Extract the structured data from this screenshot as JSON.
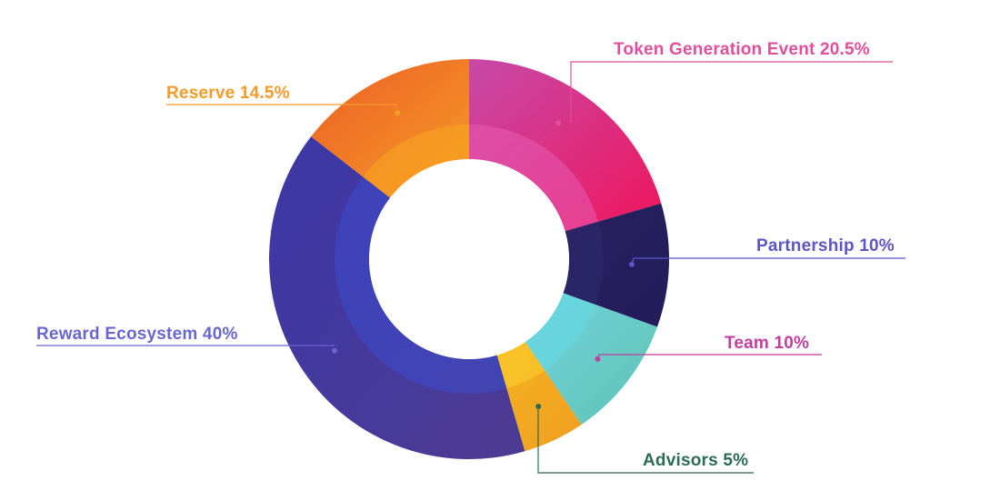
{
  "chart_data": {
    "type": "pie",
    "variant": "donut",
    "slices": [
      {
        "label": "Token Generation Event",
        "display_label": "Token Generation Event  20.5%",
        "value": 20.5,
        "color_start": "#c64aa8",
        "color_end": "#f0155c",
        "inner_color": "#e85bb3",
        "label_color": "#e04f9c",
        "label_side": "right"
      },
      {
        "label": "Partnership",
        "display_label": "Partnership 10%",
        "value": 10,
        "color_start": "#27215f",
        "color_end": "#221d5a",
        "inner_color": "#2f2a6e",
        "label_color": "#5d55c4",
        "label_side": "right"
      },
      {
        "label": "Team",
        "display_label": "Team  10%",
        "value": 10,
        "color_start": "#76d3dd",
        "color_end": "#5cc3b3",
        "inner_color": "#62dbe6",
        "label_color": "#c23f9c",
        "label_side": "right"
      },
      {
        "label": "Advisors",
        "display_label": "Advisors 5%",
        "value": 5,
        "color_start": "#f6b31e",
        "color_end": "#ee9e22",
        "inner_color": "#fbd130",
        "label_color": "#2c6b55",
        "label_side": "right"
      },
      {
        "label": "Reward Ecosystem",
        "display_label": "Reward Ecosystem 40%",
        "value": 40,
        "color_start": "#3d37a7",
        "color_end": "#4d3b92",
        "inner_color": "#3c4ccd",
        "label_color": "#6a66d0",
        "label_side": "left"
      },
      {
        "label": "Reserve",
        "display_label": "Reserve  14.5%",
        "value": 14.5,
        "color_start": "#ec5f25",
        "color_end": "#f59b28",
        "inner_color": "#f7a51f",
        "label_color": "#f49b2a",
        "label_side": "left"
      }
    ],
    "title": "",
    "legend": "none"
  }
}
